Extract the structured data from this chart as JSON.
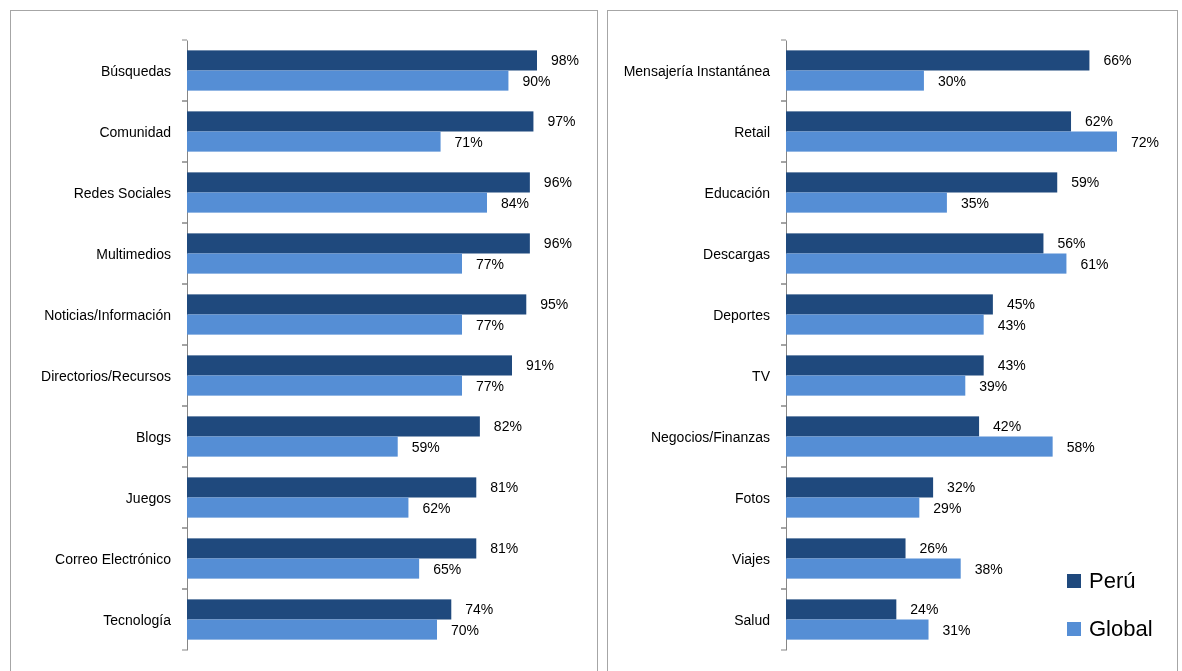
{
  "chart_data": [
    {
      "type": "bar",
      "orientation": "horizontal",
      "categories": [
        "Búsquedas",
        "Comunidad",
        "Redes Sociales",
        "Multimedios",
        "Noticias/Información",
        "Directorios/Recursos",
        "Blogs",
        "Juegos",
        "Correo Electrónico",
        "Tecnología"
      ],
      "series": [
        {
          "color": "#1f497d",
          "values": [
            98,
            97,
            96,
            96,
            95,
            91,
            82,
            81,
            81,
            74
          ],
          "value_labels": [
            "98%",
            "97%",
            "96%",
            "96%",
            "95%",
            "91%",
            "82%",
            "81%",
            "81%",
            "74%"
          ]
        },
        {
          "color": "#558ed5",
          "values": [
            90,
            71,
            84,
            77,
            77,
            77,
            59,
            62,
            65,
            70
          ],
          "value_labels": [
            "90%",
            "71%",
            "84%",
            "77%",
            "77%",
            "77%",
            "59%",
            "62%",
            "65%",
            "70%"
          ]
        }
      ],
      "tick_labels": "y"
    },
    {
      "type": "bar",
      "orientation": "horizontal",
      "categories": [
        "Mensajería Instantánea",
        "Retail",
        "Educación",
        "Descargas",
        "Deportes",
        "TV",
        "Negocios/Finanzas",
        "Fotos",
        "Viajes",
        "Salud"
      ],
      "series": [
        {
          "name": "Perú",
          "color": "#1f497d",
          "values": [
            66,
            62,
            59,
            56,
            45,
            43,
            42,
            32,
            26,
            24
          ],
          "value_labels": [
            "66%",
            "62%",
            "59%",
            "56%",
            "45%",
            "43%",
            "42%",
            "32%",
            "26%",
            "24%"
          ]
        },
        {
          "name": "Global",
          "color": "#558ed5",
          "values": [
            30,
            72,
            35,
            61,
            43,
            39,
            58,
            29,
            38,
            31
          ],
          "value_labels": [
            "30%",
            "72%",
            "35%",
            "61%",
            "43%",
            "39%",
            "58%",
            "29%",
            "38%",
            "31%"
          ]
        }
      ],
      "tick_labels": "y",
      "legend": "bottom right"
    }
  ]
}
